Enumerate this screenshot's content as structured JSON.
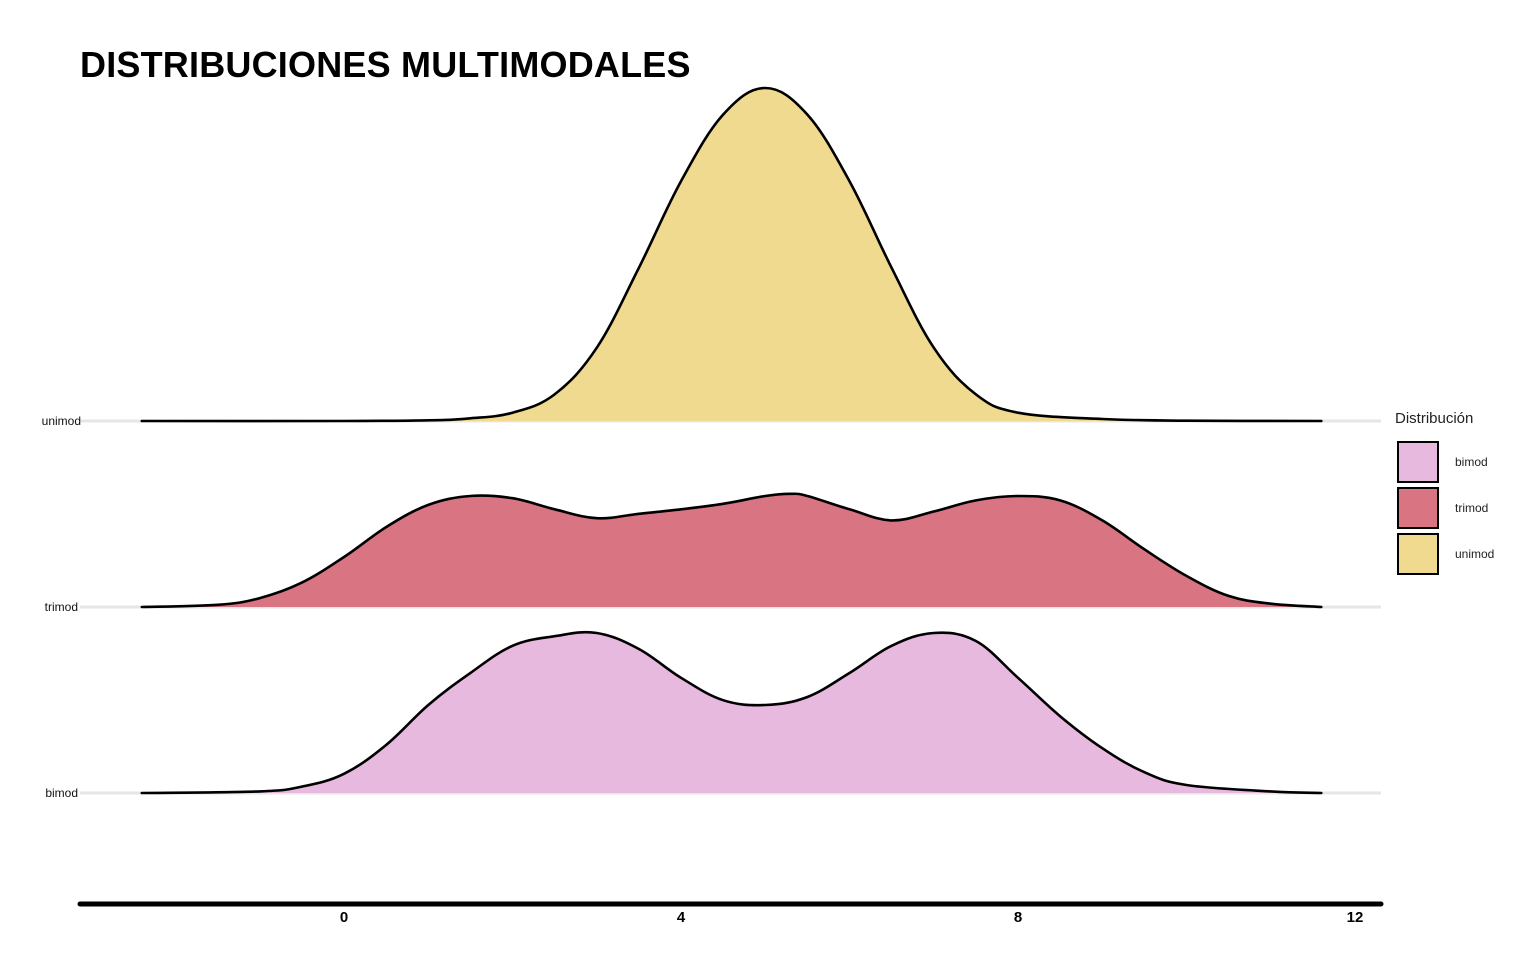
{
  "chart_data": {
    "type": "area",
    "subtype": "ridgeline",
    "title": "DISTRIBUCIONES MULTIMODALES",
    "xlabel": "",
    "ylabel": "",
    "xlim": [
      -2.4,
      12.2
    ],
    "x_ticks": [
      "0",
      "4",
      "8",
      "12"
    ],
    "grid": false,
    "legend": {
      "title": "Distribución",
      "placement": "right",
      "items": [
        {
          "name": "bimod",
          "color": "#e8b9df"
        },
        {
          "name": "trimod",
          "color": "#d97583"
        },
        {
          "name": "unimod",
          "color": "#f0da8f"
        }
      ]
    },
    "series": [
      {
        "name": "unimod",
        "color": "#f0da8f",
        "x": [
          -2.4,
          0,
          1,
          1.5,
          2,
          2.5,
          3,
          3.5,
          4,
          4.5,
          5,
          5.5,
          6,
          6.5,
          7,
          7.5,
          8,
          9,
          10,
          11.6
        ],
        "density": [
          0,
          0,
          0.002,
          0.008,
          0.025,
          0.08,
          0.22,
          0.46,
          0.72,
          0.92,
          1.0,
          0.92,
          0.72,
          0.46,
          0.22,
          0.08,
          0.025,
          0.006,
          0.001,
          0
        ]
      },
      {
        "name": "trimod",
        "color": "#d97583",
        "x": [
          -2.4,
          -1.5,
          -1,
          -0.5,
          0,
          0.5,
          1,
          1.5,
          2,
          2.5,
          3,
          3.5,
          4,
          4.5,
          5,
          5.3,
          5.5,
          6,
          6.5,
          7,
          7.5,
          8,
          8.5,
          9,
          9.5,
          10,
          10.5,
          11,
          11.6
        ],
        "density": [
          0,
          0.02,
          0.08,
          0.22,
          0.45,
          0.72,
          0.92,
          1.0,
          0.98,
          0.88,
          0.8,
          0.84,
          0.88,
          0.93,
          1.0,
          1.02,
          1.0,
          0.88,
          0.78,
          0.86,
          0.96,
          1.0,
          0.96,
          0.78,
          0.52,
          0.28,
          0.1,
          0.03,
          0
        ]
      },
      {
        "name": "bimod",
        "color": "#e8b9df",
        "x": [
          -2.4,
          -1,
          -0.5,
          0,
          0.5,
          1,
          1.5,
          2,
          2.5,
          3,
          3.5,
          4,
          4.5,
          5,
          5.5,
          6,
          6.5,
          7,
          7.5,
          8,
          8.5,
          9,
          9.5,
          10,
          11,
          11.6
        ],
        "density": [
          0,
          0.01,
          0.04,
          0.12,
          0.3,
          0.55,
          0.75,
          0.92,
          0.98,
          1.0,
          0.9,
          0.72,
          0.58,
          0.55,
          0.6,
          0.75,
          0.92,
          1.0,
          0.95,
          0.72,
          0.48,
          0.28,
          0.13,
          0.05,
          0.01,
          0
        ]
      }
    ]
  }
}
